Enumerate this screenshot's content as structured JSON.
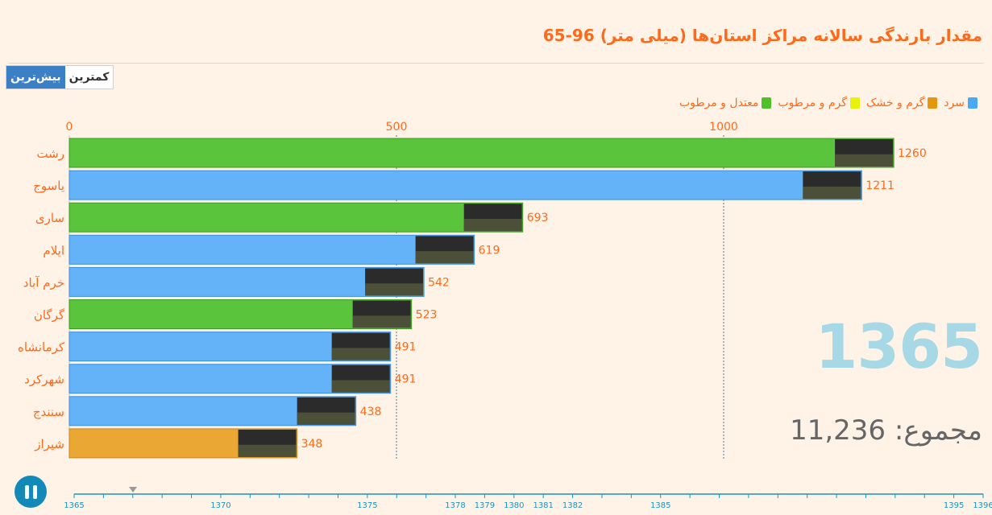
{
  "title": "مقدار بارندگی سالانه مراکز استان‌ها (میلی متر) 96-65",
  "toggle": {
    "max_label": "بیش‌ترین",
    "min_label": "کمترین"
  },
  "legend": [
    {
      "label": "معتدل و مرطوب",
      "color": "#4fbf2a"
    },
    {
      "label": "گرم و مرطوب",
      "color": "#e6f20a"
    },
    {
      "label": "گرم و خشک",
      "color": "#e8950e"
    },
    {
      "label": "سرد",
      "color": "#4aa8f5"
    }
  ],
  "current_year": "1365",
  "total_text": "مجموع: 11,236",
  "colors": {
    "temperate": "#5ac43c",
    "cold": "#64b3f9",
    "hotdry": "#eaa734",
    "accent": "#ff6a1a",
    "timeline": "#1a95c0"
  },
  "chart_data": {
    "type": "bar",
    "orientation": "horizontal",
    "categories": [
      "رشت",
      "یاسوج",
      "ساری",
      "ایلام",
      "خرم آباد",
      "گرگان",
      "کرمانشاه",
      "شهرکرد",
      "سنندج",
      "شیراز"
    ],
    "values": [
      1260,
      1211,
      693,
      619,
      542,
      523,
      491,
      491,
      438,
      348
    ],
    "climate": [
      "temperate",
      "cold",
      "temperate",
      "cold",
      "cold",
      "temperate",
      "cold",
      "cold",
      "cold",
      "hotdry"
    ],
    "value_labels": [
      "1260",
      "1211",
      "693",
      "619",
      "542",
      "523",
      "491",
      "491",
      "438",
      "348"
    ],
    "x_ticks": [
      0,
      500,
      1000
    ],
    "x_tick_labels": [
      "0",
      "500",
      "1000"
    ],
    "xlim": [
      0,
      1260
    ],
    "grid": "vertical dashed at ticks",
    "legend_position": "top-right"
  },
  "timeline": {
    "years": [
      "1365",
      "1370",
      "1375",
      "1378",
      "1379",
      "1380",
      "1381",
      "1382",
      "1385",
      "1395",
      "1396"
    ],
    "current_index": 0
  }
}
